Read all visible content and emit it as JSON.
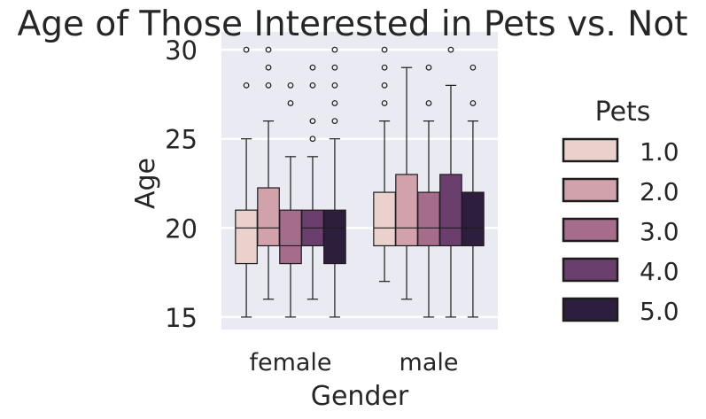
{
  "chart_data": {
    "type": "boxplot",
    "title": "Age of Those Interested in Pets vs. Not",
    "xlabel": "Gender",
    "ylabel": "Age",
    "categories": [
      "female",
      "male"
    ],
    "ylim": [
      14.3,
      31
    ],
    "yticks": [
      "15",
      "20",
      "25",
      "30"
    ],
    "grid": true,
    "legend": {
      "title": "Pets",
      "position": "right"
    },
    "series": [
      {
        "name": "1.0",
        "color": "#ead1cc",
        "boxes": [
          {
            "min": 15,
            "q1": 18,
            "median": 20,
            "q3": 21,
            "max": 25,
            "outliers": [
              28,
              30
            ]
          },
          {
            "min": 17,
            "q1": 19,
            "median": 20,
            "q3": 22,
            "max": 26,
            "outliers": [
              27,
              28,
              29,
              30
            ]
          }
        ]
      },
      {
        "name": "2.0",
        "color": "#d1a2ab",
        "boxes": [
          {
            "min": 16,
            "q1": 19,
            "median": 20,
            "q3": 22.25,
            "max": 26,
            "outliers": [
              28,
              29,
              30
            ]
          },
          {
            "min": 16,
            "q1": 19,
            "median": 20,
            "q3": 23,
            "max": 29,
            "outliers": []
          }
        ]
      },
      {
        "name": "3.0",
        "color": "#a56c8c",
        "boxes": [
          {
            "min": 15,
            "q1": 18,
            "median": 19,
            "q3": 21,
            "max": 24,
            "outliers": [
              27,
              28
            ]
          },
          {
            "min": 15,
            "q1": 19,
            "median": 20,
            "q3": 22,
            "max": 26,
            "outliers": [
              27,
              29
            ]
          }
        ]
      },
      {
        "name": "4.0",
        "color": "#6a3f6e",
        "boxes": [
          {
            "min": 16,
            "q1": 19,
            "median": 20,
            "q3": 21,
            "max": 24,
            "outliers": [
              25,
              26,
              28,
              29
            ]
          },
          {
            "min": 15,
            "q1": 19,
            "median": 20,
            "q3": 23,
            "max": 28,
            "outliers": [
              30
            ]
          }
        ]
      },
      {
        "name": "5.0",
        "color": "#2d1e3e",
        "boxes": [
          {
            "min": 15,
            "q1": 18,
            "median": 20,
            "q3": 21,
            "max": 25,
            "outliers": [
              26,
              27,
              28,
              29,
              30
            ]
          },
          {
            "min": 15,
            "q1": 19,
            "median": 20,
            "q3": 22,
            "max": 26,
            "outliers": [
              27,
              29
            ]
          }
        ]
      }
    ]
  }
}
